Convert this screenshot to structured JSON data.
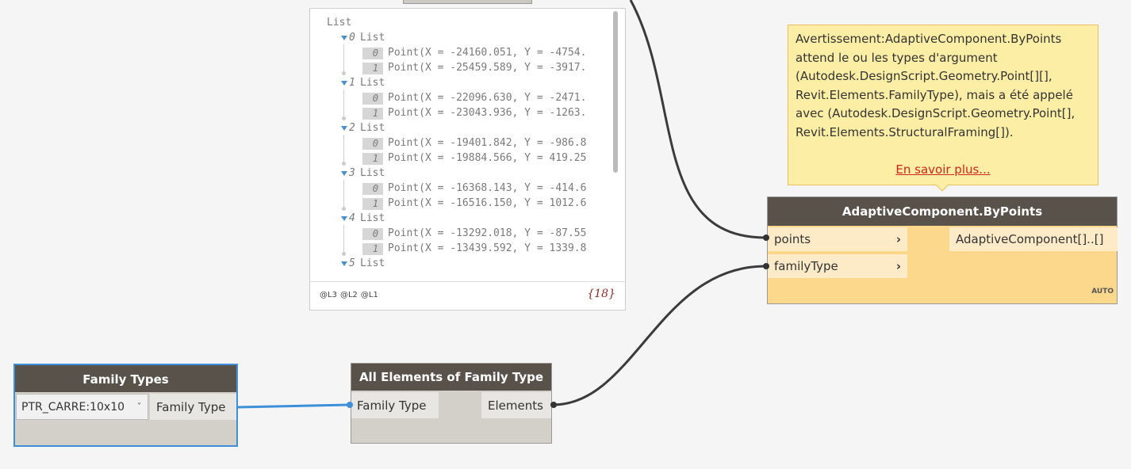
{
  "preview": {
    "root_label": "List",
    "groups": [
      {
        "index": "0",
        "label": "List",
        "items": [
          {
            "index": "0",
            "text": "Point(X = -24160.051, Y = -4754."
          },
          {
            "index": "1",
            "text": "Point(X = -25459.589, Y = -3917."
          }
        ]
      },
      {
        "index": "1",
        "label": "List",
        "items": [
          {
            "index": "0",
            "text": "Point(X = -22096.630, Y = -2471."
          },
          {
            "index": "1",
            "text": "Point(X = -23043.936, Y = -1263."
          }
        ]
      },
      {
        "index": "2",
        "label": "List",
        "items": [
          {
            "index": "0",
            "text": "Point(X = -19401.842, Y = -986.8"
          },
          {
            "index": "1",
            "text": "Point(X = -19884.566, Y = 419.25"
          }
        ]
      },
      {
        "index": "3",
        "label": "List",
        "items": [
          {
            "index": "0",
            "text": "Point(X = -16368.143, Y = -414.6"
          },
          {
            "index": "1",
            "text": "Point(X = -16516.150, Y = 1012.6"
          }
        ]
      },
      {
        "index": "4",
        "label": "List",
        "items": [
          {
            "index": "0",
            "text": "Point(X = -13292.018, Y = -87.55"
          },
          {
            "index": "1",
            "text": "Point(X = -13439.592, Y = 1339.8"
          }
        ]
      },
      {
        "index": "5",
        "label": "List",
        "items": []
      }
    ],
    "levels": [
      "@L3",
      "@L2",
      "@L1"
    ],
    "count": "{18}"
  },
  "warning": {
    "lines": [
      "Avertissement:AdaptiveComponent.ByPoints",
      "attend le ou les types d'argument",
      "(Autodesk.DesignScript.Geometry.Point[][],",
      "Revit.Elements.FamilyType), mais a été appelé",
      "avec (Autodesk.DesignScript.Geometry.Point[],",
      "Revit.Elements.StructuralFraming[])."
    ],
    "link": "En savoir plus..."
  },
  "nodes": [
    {
      "title": "AdaptiveComponent.ByPoints",
      "inputs": [
        "points",
        "familyType"
      ],
      "output": "AdaptiveComponent[]..[]",
      "lacing": "AUTO"
    },
    {
      "title": "Family Types",
      "selection": "PTR_CARRE:10x10",
      "output": "Family Type"
    },
    {
      "title": "All Elements of Family Type",
      "input": "Family Type",
      "output": "Elements"
    }
  ]
}
